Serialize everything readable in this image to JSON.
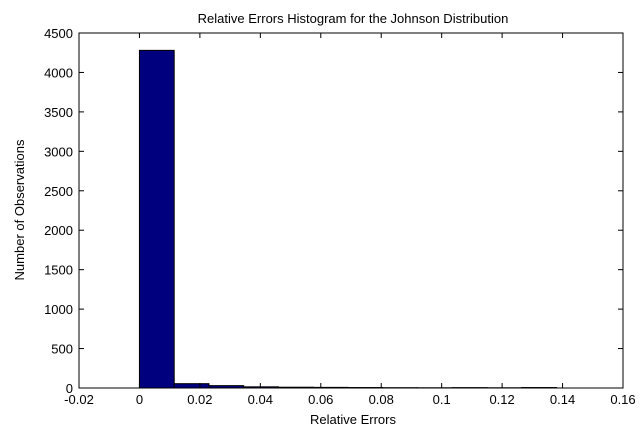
{
  "chart_data": {
    "type": "bar",
    "title": "Relative Errors Histogram for the Johnson Distribution",
    "xlabel": "Relative Errors",
    "ylabel": "Number of Observations",
    "xlim": [
      -0.02,
      0.16
    ],
    "ylim": [
      0,
      4500
    ],
    "xticks": [
      -0.02,
      0,
      0.02,
      0.04,
      0.06,
      0.08,
      0.1,
      0.12,
      0.14,
      0.16
    ],
    "xtick_labels": [
      "-0.02",
      "0",
      "0.02",
      "0.04",
      "0.06",
      "0.08",
      "0.1",
      "0.12",
      "0.14",
      "0.16"
    ],
    "yticks": [
      0,
      500,
      1000,
      1500,
      2000,
      2500,
      3000,
      3500,
      4000,
      4500
    ],
    "ytick_labels": [
      "0",
      "500",
      "1000",
      "1500",
      "2000",
      "2500",
      "3000",
      "3500",
      "4000",
      "4500"
    ],
    "bin_width": 0.0115,
    "bins": [
      {
        "x0": 0.0,
        "x1": 0.0115,
        "count": 4280
      },
      {
        "x0": 0.0115,
        "x1": 0.023,
        "count": 55
      },
      {
        "x0": 0.023,
        "x1": 0.0345,
        "count": 30
      },
      {
        "x0": 0.0345,
        "x1": 0.046,
        "count": 15
      },
      {
        "x0": 0.046,
        "x1": 0.0575,
        "count": 10
      },
      {
        "x0": 0.0575,
        "x1": 0.069,
        "count": 8
      },
      {
        "x0": 0.069,
        "x1": 0.0805,
        "count": 6
      },
      {
        "x0": 0.0805,
        "x1": 0.092,
        "count": 4
      },
      {
        "x0": 0.092,
        "x1": 0.1035,
        "count": 3
      },
      {
        "x0": 0.1035,
        "x1": 0.115,
        "count": 5
      },
      {
        "x0": 0.115,
        "x1": 0.1265,
        "count": 3
      },
      {
        "x0": 0.1265,
        "x1": 0.138,
        "count": 6
      }
    ],
    "bar_color": "#00007f",
    "bar_edge_color": "#000000",
    "grid": false,
    "box": true
  }
}
